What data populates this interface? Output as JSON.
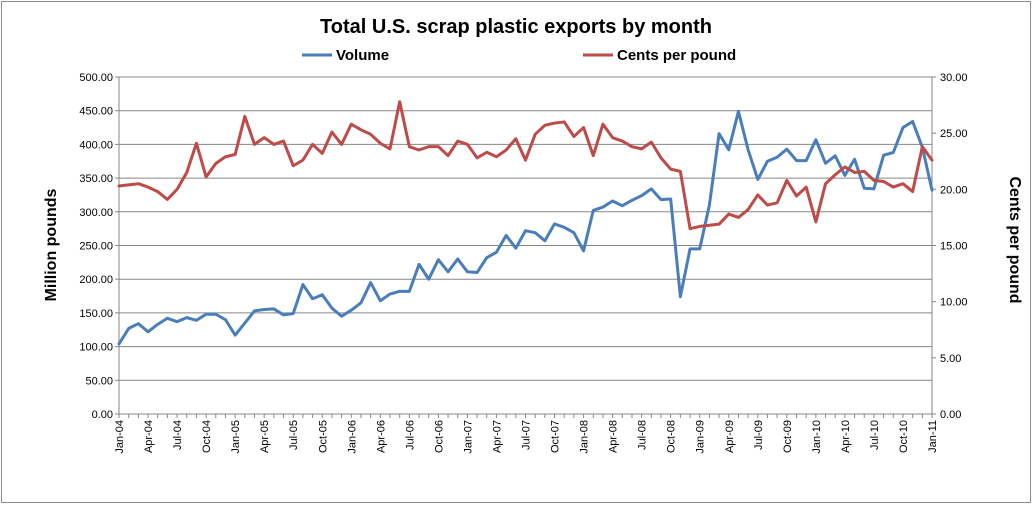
{
  "chart_data": {
    "type": "line",
    "title": "Total U.S. scrap plastic exports by month",
    "ylabel_left": "Million pounds",
    "ylabel_right": "Cents per pound",
    "ylim_left": [
      0,
      500
    ],
    "ylim_right": [
      0,
      30
    ],
    "y_ticks_left": [
      "0.00",
      "50.00",
      "100.00",
      "150.00",
      "200.00",
      "250.00",
      "300.00",
      "350.00",
      "400.00",
      "450.00",
      "500.00"
    ],
    "y_ticks_right": [
      "0.00",
      "5.00",
      "10.00",
      "15.00",
      "20.00",
      "25.00",
      "30.00"
    ],
    "x_tick_labels": [
      "Jan-04",
      "Apr-04",
      "Jul-04",
      "Oct-04",
      "Jan-05",
      "Apr-05",
      "Jul-05",
      "Oct-05",
      "Jan-06",
      "Apr-06",
      "Jul-06",
      "Oct-06",
      "Jan-07",
      "Apr-07",
      "Jul-07",
      "Oct-07",
      "Jan-08",
      "Apr-08",
      "Jul-08",
      "Oct-08",
      "Jan-09",
      "Apr-09",
      "Jul-09",
      "Oct-09",
      "Jan-10",
      "Apr-10",
      "Jul-10",
      "Oct-10",
      "Jan-11"
    ],
    "x_start": "Jan-04",
    "x_end": "Jan-11",
    "grid": "horizontal",
    "legend_position": "top",
    "series": [
      {
        "name": "Volume",
        "axis": "left",
        "color": "#4a7ebb",
        "values": [
          104,
          127,
          134,
          122,
          133,
          142,
          137,
          143,
          139,
          148,
          148,
          140,
          117,
          135,
          153,
          155,
          156,
          147,
          149,
          192,
          171,
          177,
          157,
          145,
          154,
          165,
          195,
          168,
          178,
          182,
          182,
          222,
          200,
          229,
          211,
          230,
          211,
          210,
          232,
          240,
          265,
          246,
          272,
          269,
          257,
          282,
          277,
          269,
          242,
          302,
          307,
          316,
          309,
          317,
          324,
          334,
          318,
          319,
          174,
          245,
          245,
          310,
          416,
          392,
          449,
          392,
          348,
          375,
          381,
          393,
          376,
          376,
          407,
          372,
          383,
          354,
          378,
          335,
          334,
          384,
          388,
          425,
          434,
          396,
          332
        ]
      },
      {
        "name": "Cents per pound",
        "axis": "right",
        "color": "#be4b48",
        "values": [
          20.3,
          20.4,
          20.5,
          20.2,
          19.8,
          19.1,
          20.0,
          21.5,
          24.1,
          21.1,
          22.3,
          22.9,
          23.1,
          26.5,
          24.0,
          24.6,
          24.0,
          24.3,
          22.1,
          22.6,
          24.0,
          23.2,
          25.1,
          24.0,
          25.8,
          25.3,
          24.9,
          24.1,
          23.6,
          27.8,
          23.8,
          23.5,
          23.8,
          23.8,
          23.0,
          24.3,
          24.0,
          22.8,
          23.3,
          22.9,
          23.5,
          24.5,
          22.6,
          24.9,
          25.7,
          25.9,
          26.0,
          24.7,
          25.5,
          23.0,
          25.8,
          24.6,
          24.3,
          23.8,
          23.6,
          24.2,
          22.8,
          21.8,
          21.6,
          16.5,
          16.7,
          16.8,
          16.9,
          17.8,
          17.5,
          18.2,
          19.5,
          18.6,
          18.8,
          20.8,
          19.4,
          20.2,
          17.1,
          20.5,
          21.3,
          22.0,
          21.5,
          21.6,
          20.8,
          20.7,
          20.2,
          20.5,
          19.8,
          23.8,
          22.6
        ]
      }
    ]
  }
}
